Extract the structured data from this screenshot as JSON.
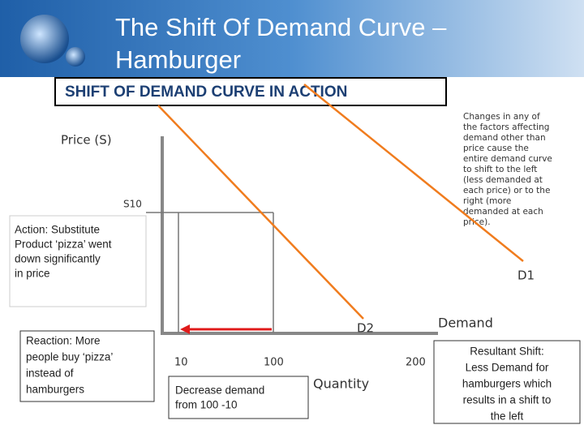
{
  "header": {
    "title_line1": "The Shift Of Demand Curve –",
    "title_line2": "Hamburger",
    "subtitle": "SHIFT OF DEMAND CURVE IN ACTION"
  },
  "note": [
    "Changes in any of",
    "the factors affecting",
    "demand other than",
    "price cause the",
    "entire demand curve",
    "to shift to the left",
    "(less demanded at",
    "each price) or to the",
    "right (more",
    "demanded at each",
    "price)."
  ],
  "diagram": {
    "y_axis_label": "Price (S)",
    "price_tick": "S10",
    "x_axis_label": "Quantity",
    "x_ticks": [
      "10",
      "100",
      "200"
    ],
    "curve_labels": [
      "D1",
      "D2"
    ],
    "demand_label": "Demand"
  },
  "boxes": {
    "action": [
      "Action: Substitute",
      "Product ‘pizza’ went",
      "down significantly",
      "in price"
    ],
    "reaction": [
      "Reaction: More",
      "people buy ‘pizza’",
      "instead of",
      "hamburgers"
    ],
    "decrease": [
      "Decrease demand",
      "from 100 -10"
    ],
    "result": [
      "Resultant Shift:",
      "Less Demand for",
      "hamburgers which",
      "results in a shift to",
      "the left"
    ]
  }
}
